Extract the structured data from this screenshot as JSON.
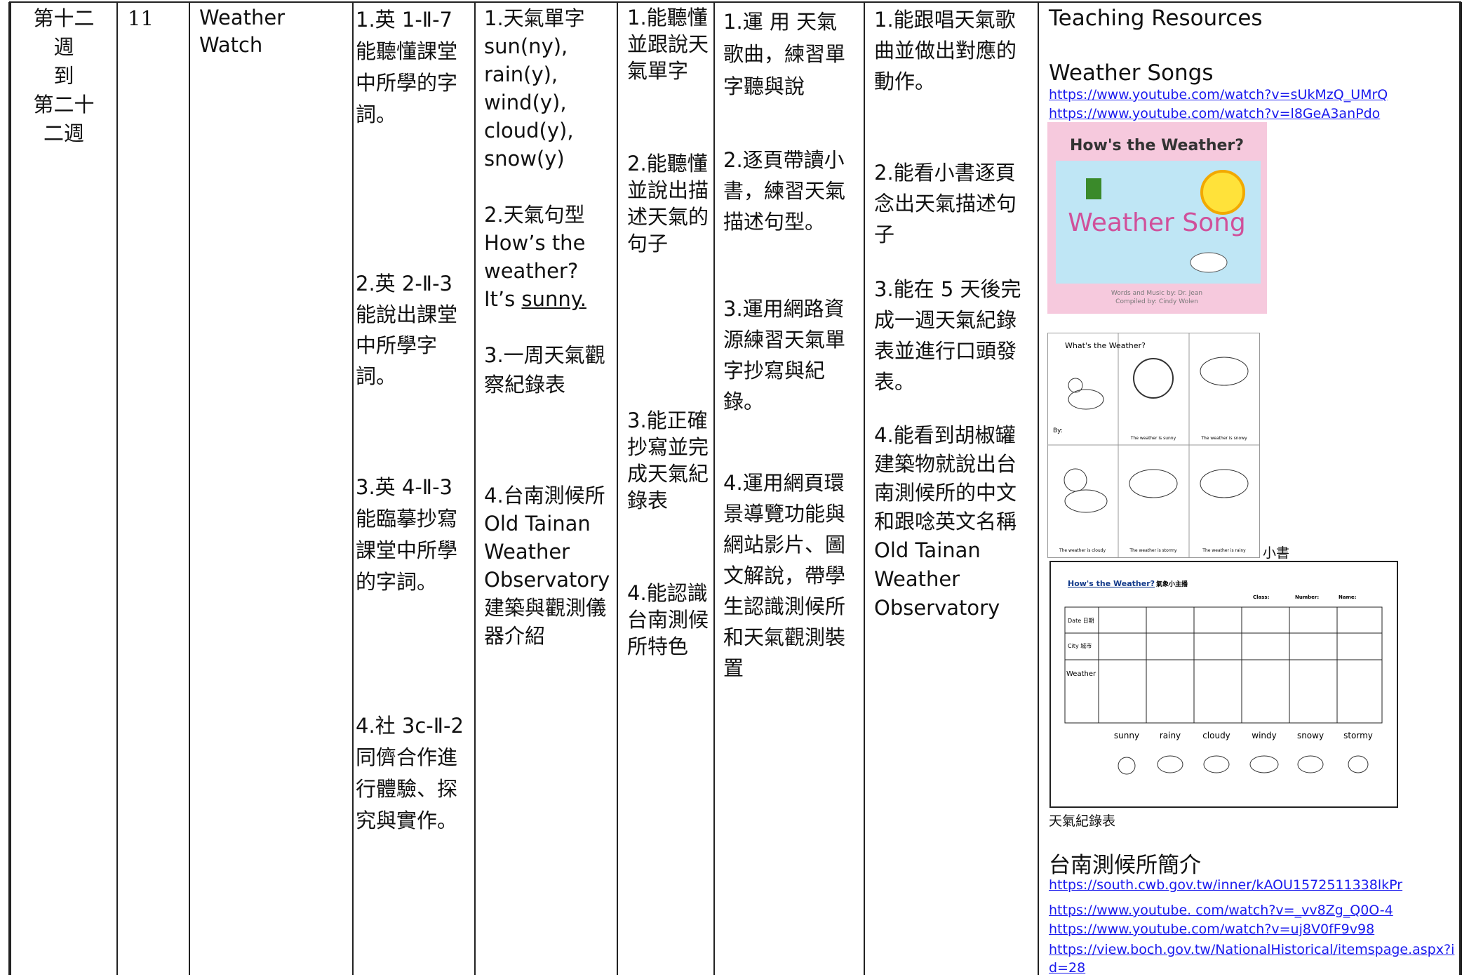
{
  "row": {
    "week": [
      "第十二",
      "週",
      "到",
      "第二十",
      "二週"
    ],
    "periods": "11",
    "unit": "Weather Watch",
    "competencies": [
      "1.英 1-Ⅱ-7 能聽懂課堂中所學的字詞。",
      "2.英 2-Ⅱ-3 能說出課堂中所學字詞。",
      "3.英 4-Ⅱ-3 能臨摹抄寫課堂中所學的字詞。",
      "4.社 3c-Ⅱ-2 同儕合作進行體驗、探究與實作。"
    ],
    "content": [
      {
        "text": "1.天氣單字 sun(ny), rain(y), wind(y), cloud(y), snow(y)"
      },
      {
        "text": "2.天氣句型 How’s the weather? It’s ",
        "underlined": "sunny."
      },
      {
        "text": "3.一周天氣觀察紀錄表"
      },
      {
        "text": "4.台南測候所 Old Tainan Weather Observatory 建築與觀測儀器介紹"
      }
    ],
    "objectives": [
      "1.能聽懂並跟說天氣單字",
      "2.能聽懂並說出描述天氣的句子",
      "3.能正確抄寫並完成天氣紀錄表",
      "4.能認識台南測候所特色"
    ],
    "activities": [
      "1.運 用 天氣歌曲，練習單字聽與說",
      "2.逐頁帶讀小書，練習天氣描述句型。",
      "3.運用網路資源練習天氣單字抄寫與紀錄。",
      "4.運用網頁環景導覽功能與網站影片、圖文解說，帶學生認識測候所和天氣觀測裝置"
    ],
    "assessment": [
      "1.能跟唱天氣歌曲並做出對應的動作。",
      "2.能看小書逐頁念出天氣描述句子",
      "3.能在 5 天後完成一週天氣紀錄表並進行口頭發表。",
      "4.能看到胡椒罐建築物就說出台南測候所的中文和跟唸英文名稱 Old Tainan Weather Observatory"
    ],
    "resources": {
      "title": "Teaching Resources",
      "songs_heading": "Weather Songs",
      "song_links": [
        "https://www.youtube.com/watch?v=sUkMzQ_UMrQ",
        "https://www.youtube.com/watch?v=l8GeA3anPdo"
      ],
      "song_cover": {
        "title": "How's the Weather?",
        "name": "Weather Song",
        "credits": [
          "Words and Music by: Dr. Jean",
          "Compiled by: Cindy Wolen"
        ]
      },
      "booklet": {
        "title": "What's the Weather?",
        "by": "By:",
        "captions": [
          "The weather is sunny",
          "The weather is snowy",
          "The weather is cloudy",
          "The weather is stormy",
          "The weather is rainy"
        ],
        "label": "小書"
      },
      "worksheet": {
        "title": "How's the Weather?",
        "subtitle": "氣象小主播",
        "fields": [
          "Class:",
          "Number:",
          "Name:"
        ],
        "row_labels": [
          "Date 日期",
          "City 城市",
          "Weather"
        ],
        "weathers": [
          "sunny",
          "rainy",
          "cloudy",
          "windy",
          "snowy",
          "stormy"
        ],
        "label": "天氣紀錄表"
      },
      "observatory_heading": "台南測候所簡介",
      "links": [
        "https://south.cwb.gov.tw/inner/kAOU1572511338lkPr",
        "https://www.youtube. com/watch?v=_vv8Zg_Q0O-4",
        "https://www.youtube.com/watch?v=uj8V0fF9v98",
        "https://view.boch.gov.tw/NationalHistorical/itemspage.aspx?id=28"
      ]
    }
  }
}
